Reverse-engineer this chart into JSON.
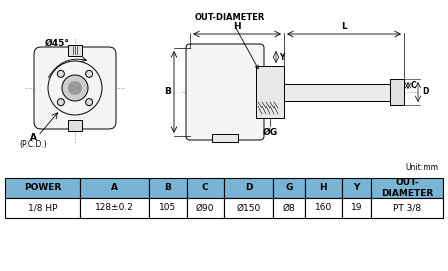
{
  "bg_color": "#ffffff",
  "table_header_color": "#7ab4d4",
  "table_border_color": "#000000",
  "table_headers": [
    "POWER",
    "A",
    "B",
    "C",
    "D",
    "G",
    "H",
    "Y",
    "OUT-\nDIAMETER"
  ],
  "table_values": [
    "1/8 HP",
    "128±0.2",
    "105",
    "Ø90",
    "Ø150",
    "Ø8",
    "160",
    "19",
    "PT 3/8"
  ],
  "unit_text": "Unit:mm",
  "lc": "#000000",
  "lw": 0.7,
  "fs": 6.5
}
